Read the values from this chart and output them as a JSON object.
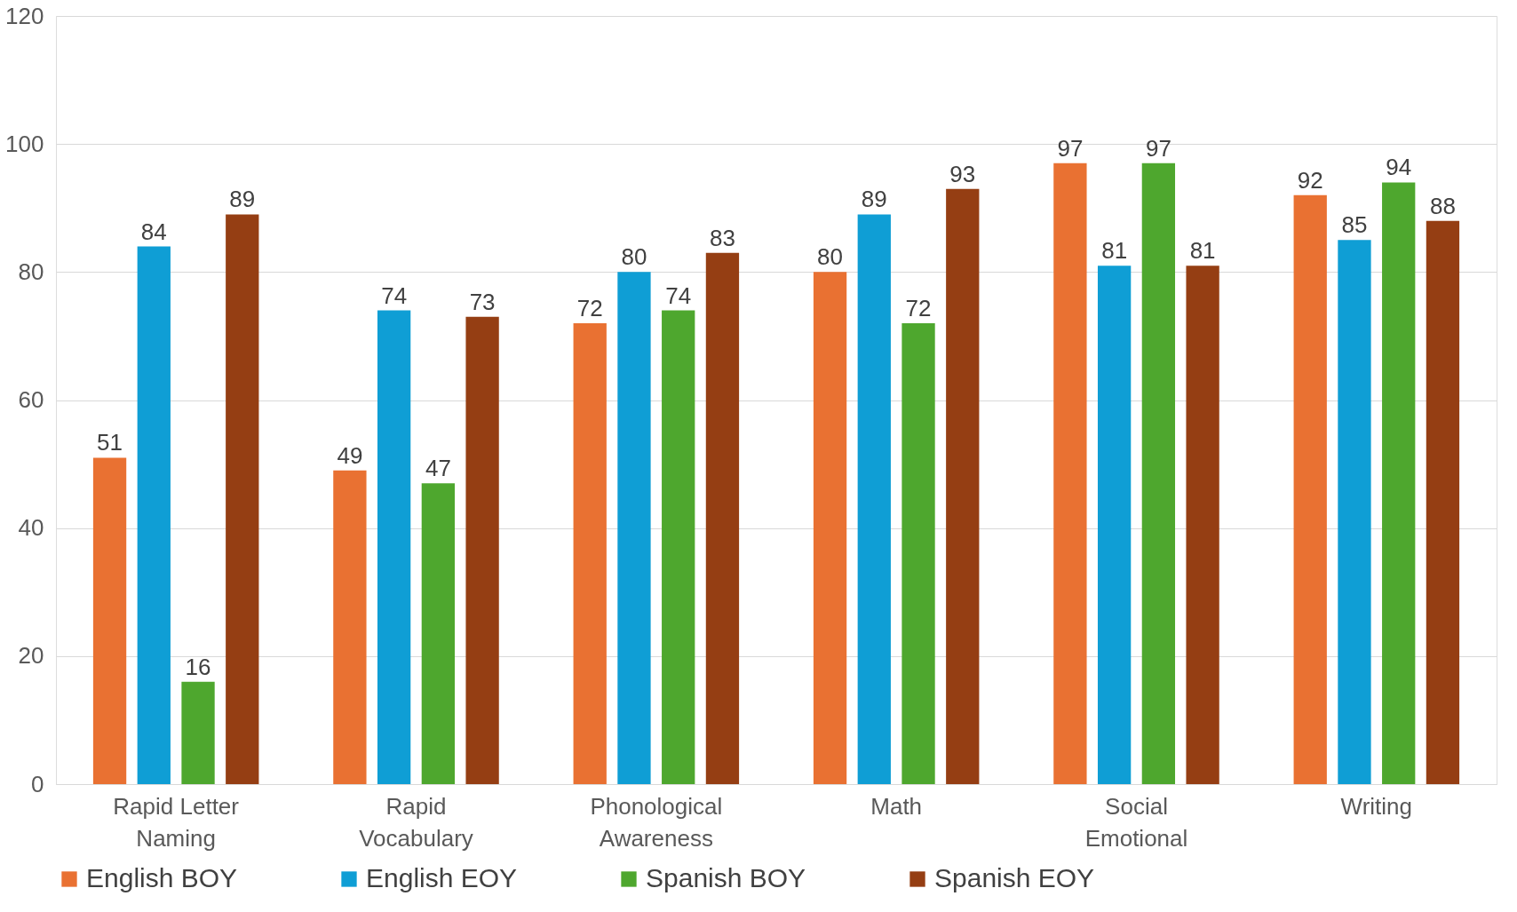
{
  "chart_data": {
    "type": "bar",
    "categories": [
      "Rapid Letter Naming",
      "Rapid Vocabulary",
      "Phonological Awareness",
      "Math",
      "Social Emotional",
      "Writing"
    ],
    "series": [
      {
        "name": "English BOY",
        "color": "#e97132",
        "values": [
          51,
          49,
          72,
          80,
          97,
          92
        ]
      },
      {
        "name": "English EOY",
        "color": "#0f9ed5",
        "values": [
          84,
          74,
          80,
          89,
          81,
          85
        ]
      },
      {
        "name": "Spanish BOY",
        "color": "#4ea72e",
        "values": [
          16,
          47,
          74,
          72,
          97,
          94
        ]
      },
      {
        "name": "Spanish EOY",
        "color": "#953e13",
        "values": [
          89,
          73,
          83,
          93,
          81,
          88
        ]
      }
    ],
    "ylim": [
      0,
      120
    ],
    "yticks": [
      0,
      20,
      40,
      60,
      80,
      100,
      120
    ],
    "grid": "y",
    "legend": "bottom",
    "data_labels": true
  }
}
